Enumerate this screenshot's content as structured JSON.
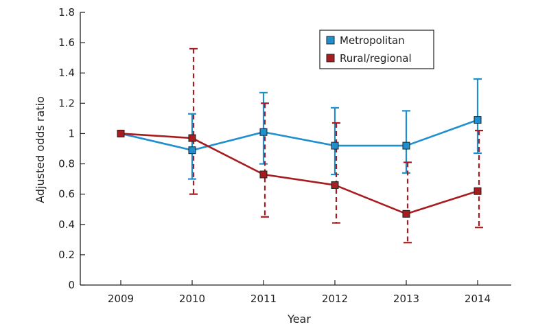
{
  "chart_data": {
    "type": "line",
    "xlabel": "Year",
    "ylabel": "Adjusted odds ratio",
    "categories": [
      "2009",
      "2010",
      "2011",
      "2012",
      "2013",
      "2014"
    ],
    "ylim": [
      0,
      1.8
    ],
    "yticks": [
      "0",
      "0.2",
      "0.4",
      "0.6",
      "0.8",
      "1",
      "1.2",
      "1.4",
      "1.6",
      "1.8"
    ],
    "grid": false,
    "legend_position": "top-right",
    "series": [
      {
        "name": "Metropolitan",
        "color": "#1f8fce",
        "line_style": "solid-error-bars",
        "values": [
          1.0,
          0.89,
          1.01,
          0.92,
          0.92,
          1.09
        ],
        "lower": [
          1.0,
          0.7,
          0.8,
          0.73,
          0.74,
          0.87
        ],
        "upper": [
          1.0,
          1.13,
          1.27,
          1.17,
          1.15,
          1.36
        ]
      },
      {
        "name": "Rural/regional",
        "color": "#a61c1f",
        "line_style": "dashed-error-bars",
        "values": [
          1.0,
          0.97,
          0.73,
          0.66,
          0.47,
          0.62
        ],
        "lower": [
          1.0,
          0.6,
          0.45,
          0.41,
          0.28,
          0.38
        ],
        "upper": [
          1.0,
          1.56,
          1.2,
          1.07,
          0.81,
          1.02
        ]
      }
    ]
  }
}
